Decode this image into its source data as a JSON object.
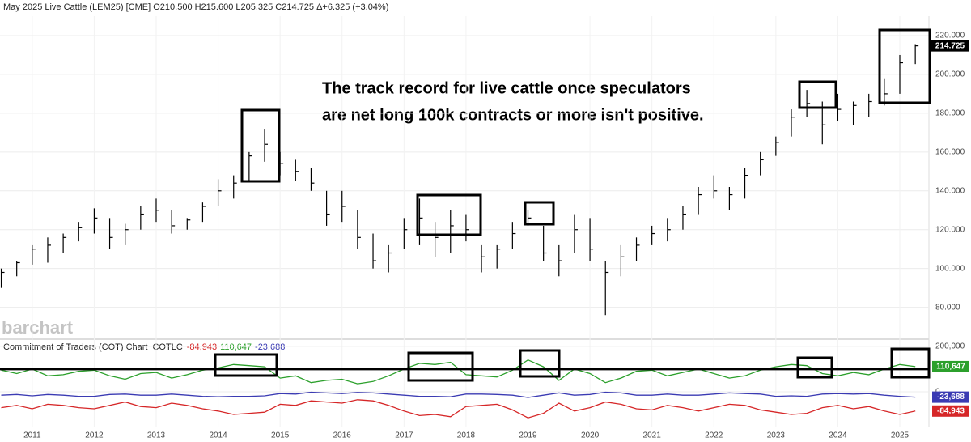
{
  "chart_data": [
    {
      "type": "ohlc",
      "title": "May 2025 Live Cattle (LEM25) [CME] O210.500 H215.600 L205.325 C214.725 Δ+6.325 (+3.04%)",
      "annotation": [
        "The track record for live cattle once speculators",
        "are net long 100k contracts or more isn't positive."
      ],
      "watermark": "barchart",
      "color": "#000000",
      "x": [
        2010.5,
        2010.75,
        2011,
        2011.25,
        2011.5,
        2011.75,
        2012,
        2012.25,
        2012.5,
        2012.75,
        2013,
        2013.25,
        2013.5,
        2013.75,
        2014,
        2014.25,
        2014.5,
        2014.75,
        2015,
        2015.25,
        2015.5,
        2015.75,
        2016,
        2016.25,
        2016.5,
        2016.75,
        2017,
        2017.25,
        2017.5,
        2017.75,
        2018,
        2018.25,
        2018.5,
        2018.75,
        2019,
        2019.25,
        2019.5,
        2019.75,
        2020,
        2020.25,
        2020.5,
        2020.75,
        2021,
        2021.25,
        2021.5,
        2021.75,
        2022,
        2022.25,
        2022.5,
        2022.75,
        2023,
        2023.25,
        2023.5,
        2023.75,
        2024,
        2024.25,
        2024.5,
        2024.75,
        2025,
        2025.25
      ],
      "high": [
        100,
        104,
        112,
        116,
        118,
        124,
        131,
        126,
        123,
        132,
        136,
        130,
        126,
        134,
        146,
        148,
        160,
        172,
        160,
        156,
        152,
        140,
        140,
        130,
        118,
        112,
        126,
        136,
        124,
        130,
        128,
        112,
        112,
        124,
        130,
        122,
        112,
        128,
        126,
        104,
        112,
        116,
        122,
        126,
        132,
        142,
        148,
        142,
        152,
        160,
        168,
        182,
        192,
        186,
        190,
        186,
        190,
        198,
        210,
        215.6
      ],
      "low": [
        90,
        96,
        102,
        103,
        108,
        114,
        118,
        110,
        112,
        120,
        124,
        118,
        120,
        124,
        132,
        136,
        145,
        155,
        148,
        145,
        140,
        122,
        124,
        110,
        100,
        98,
        110,
        112,
        106,
        108,
        114,
        98,
        100,
        110,
        122,
        104,
        96,
        108,
        104,
        76,
        96,
        104,
        112,
        114,
        120,
        128,
        136,
        130,
        136,
        148,
        158,
        168,
        178,
        164,
        176,
        174,
        178,
        184,
        190,
        205.325
      ],
      "close": [
        98,
        103,
        110,
        112,
        116,
        121,
        126,
        116,
        120,
        128,
        130,
        122,
        125,
        132,
        140,
        144,
        158,
        164,
        154,
        150,
        144,
        128,
        132,
        116,
        104,
        108,
        120,
        126,
        116,
        122,
        120,
        106,
        110,
        118,
        126,
        108,
        104,
        120,
        110,
        98,
        106,
        112,
        118,
        120,
        128,
        138,
        140,
        138,
        148,
        156,
        165,
        178,
        185,
        174,
        182,
        184,
        186,
        190,
        206,
        214.725
      ],
      "xlim": [
        2010.48,
        2025.47
      ],
      "ylim": [
        64,
        230
      ],
      "xticks": [
        2011,
        2012,
        2013,
        2014,
        2015,
        2016,
        2017,
        2018,
        2019,
        2020,
        2021,
        2022,
        2023,
        2024,
        2025
      ],
      "yticks": [
        {
          "value": 80,
          "label": "80.000"
        },
        {
          "value": 100,
          "label": "100.000"
        },
        {
          "value": 120,
          "label": "120.000"
        },
        {
          "value": 140,
          "label": "140.000"
        },
        {
          "value": 160,
          "label": "160.000"
        },
        {
          "value": 180,
          "label": "180.000"
        },
        {
          "value": 200,
          "label": "200.000"
        },
        {
          "value": 220,
          "label": "220.000"
        }
      ],
      "grid": true
    },
    {
      "type": "line",
      "title": "Commitment of Traders (COT) Chart",
      "code": "COTLC",
      "reference_line": 100000,
      "series": [
        {
          "color": "#d62728",
          "label": "-84,943",
          "values": [
            -70000,
            -60000,
            -75000,
            -55000,
            -60000,
            -70000,
            -75000,
            -60000,
            -45000,
            -65000,
            -70000,
            -50000,
            -60000,
            -75000,
            -85000,
            -100000,
            -95000,
            -90000,
            -55000,
            -60000,
            -40000,
            -45000,
            -50000,
            -35000,
            -40000,
            -60000,
            -85000,
            -105000,
            -100000,
            -110000,
            -65000,
            -60000,
            -55000,
            -80000,
            -115000,
            -95000,
            -50000,
            -85000,
            -70000,
            -45000,
            -55000,
            -75000,
            -80000,
            -60000,
            -70000,
            -85000,
            -70000,
            -55000,
            -60000,
            -80000,
            -90000,
            -100000,
            -95000,
            -70000,
            -60000,
            -75000,
            -65000,
            -85000,
            -100000,
            -84943
          ]
        },
        {
          "color": "#2ca02c",
          "label": "110,647",
          "values": [
            95000,
            80000,
            100000,
            70000,
            75000,
            90000,
            95000,
            70000,
            55000,
            80000,
            85000,
            60000,
            75000,
            95000,
            105000,
            120000,
            115000,
            110000,
            60000,
            70000,
            40000,
            50000,
            55000,
            35000,
            45000,
            70000,
            100000,
            125000,
            120000,
            130000,
            75000,
            70000,
            65000,
            95000,
            140000,
            110000,
            50000,
            100000,
            80000,
            40000,
            60000,
            90000,
            95000,
            70000,
            85000,
            100000,
            80000,
            60000,
            70000,
            95000,
            110000,
            120000,
            115000,
            80000,
            70000,
            85000,
            75000,
            100000,
            120000,
            110647
          ]
        },
        {
          "color": "#3b3bb3",
          "label": "-23,688",
          "values": [
            -15000,
            -12000,
            -18000,
            -12000,
            -15000,
            -20000,
            -20000,
            -12000,
            -10000,
            -15000,
            -15000,
            -10000,
            -15000,
            -20000,
            -22000,
            -20000,
            -20000,
            -18000,
            -8000,
            -10000,
            -2000,
            -5000,
            -8000,
            -3000,
            -5000,
            -10000,
            -15000,
            -20000,
            -20000,
            -22000,
            -10000,
            -10000,
            -12000,
            -15000,
            -25000,
            -15000,
            -5000,
            -15000,
            -12000,
            -2000,
            -5000,
            -15000,
            -15000,
            -10000,
            -15000,
            -15000,
            -10000,
            -5000,
            -8000,
            -10000,
            -20000,
            -18000,
            -20000,
            -10000,
            -8000,
            -10000,
            -8000,
            -15000,
            -20000,
            -23688
          ]
        }
      ],
      "ylim": [
        -157000,
        228000
      ],
      "yticks": [
        {
          "value": 200000,
          "label": "200,000"
        },
        0
      ]
    }
  ]
}
